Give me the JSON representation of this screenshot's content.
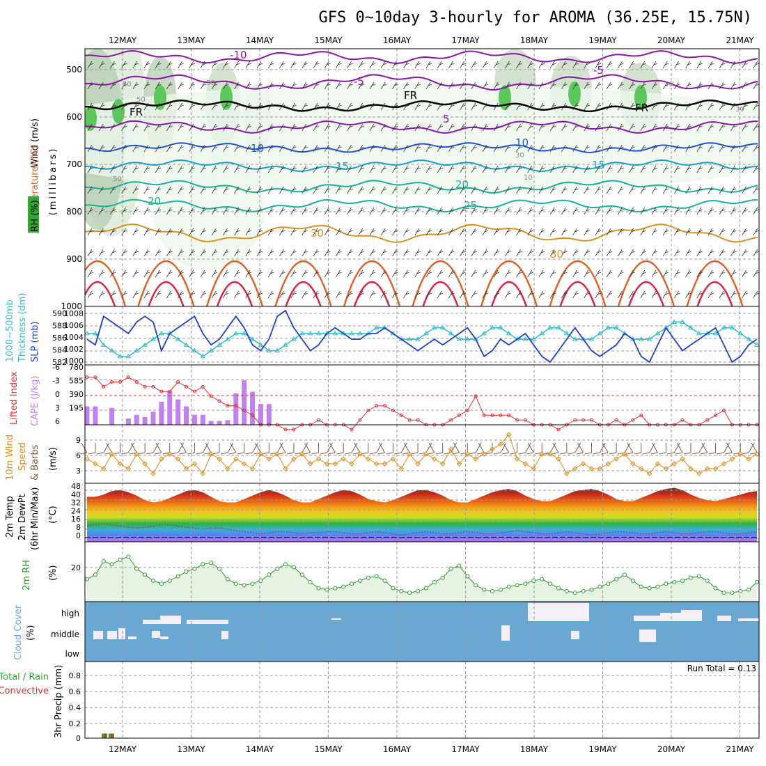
{
  "title": "GFS 0~10day 3-hourly for AROMA (36.25E, 15.75N)",
  "dates": [
    "12MAY",
    "13MAY",
    "14MAY",
    "15MAY",
    "16MAY",
    "17MAY",
    "18MAY",
    "19MAY",
    "20MAY",
    "21MAY"
  ],
  "colors": {
    "grid": "#9a9a9a",
    "cloud": "#6aa8d4",
    "cloud_gap": "#f4eef6",
    "slp": "#1f3fcf",
    "thickness": "#33bbcc",
    "lifted": "#e03030",
    "cape": "#c080f0",
    "wind": "#e08a10",
    "barb": "#7a5a40",
    "rh": "#2a9a2a",
    "rh_fill": "#e6f2e2",
    "dew": "#a04040",
    "temp_outline": "#5a3a2a",
    "iso_purple": "#8a14a8",
    "iso_blue": "#1f55d0",
    "iso_cyan": "#1aa0c8",
    "iso_teal": "#1ab09a",
    "iso_orange": "#d89020",
    "iso_dark_orange": "#e06020",
    "iso_red": "#e02040",
    "freezing": "#000000"
  },
  "panels": {
    "upper": {
      "ylabel_wind": "Wind (m/s)",
      "ylabel_temp": "Temperature (°C)",
      "ylabel_rh": "RH (%)",
      "ylabel_p": "(millibars)",
      "yticks": [
        "500",
        "600",
        "700",
        "800",
        "900",
        "1000"
      ],
      "contour_labels": [
        "-10",
        "-5",
        "-5",
        "FR",
        "FR",
        "FR",
        "5",
        "10",
        "10",
        "15",
        "15",
        "20",
        "20",
        "25",
        "30",
        "30"
      ],
      "rh_labels": [
        "50",
        "50",
        "50",
        "30",
        "30",
        "30",
        "50",
        "10"
      ]
    },
    "slp": {
      "ylabel1": "1000~500mb",
      "ylabel2": "Thickness (dm)",
      "ylabel3": "SLP (mb)",
      "yticks_left": [
        "590",
        "588",
        "586",
        "584",
        "582"
      ],
      "yticks_right": [
        "1008",
        "1006",
        "1004",
        "1002",
        "1000"
      ]
    },
    "cape": {
      "ylabel1": "Lifted Index",
      "ylabel2": "CAPE (J/kg)",
      "yticks_left": [
        "-6",
        "-3",
        "0",
        "3",
        "6"
      ],
      "yticks_right": [
        "780",
        "585",
        "390",
        "195"
      ]
    },
    "wind": {
      "ylabel1": "10m Wind",
      "ylabel2": "Speed",
      "ylabel3": "& Barbs",
      "ylabel4": "(m/s)",
      "yticks": [
        "9",
        "6",
        "3"
      ]
    },
    "temp": {
      "ylabel1": "2m Temp",
      "ylabel2": "2m DewPt",
      "ylabel3": "(6hr Min/Max)",
      "ylabel4": "(°C)",
      "yticks": [
        "48",
        "40",
        "32",
        "24",
        "16",
        "8",
        "0"
      ]
    },
    "rh": {
      "ylabel1": "2m RH",
      "ylabel2": "(%)",
      "yticks": [
        "20"
      ]
    },
    "cloud": {
      "ylabel1": "Cloud Cover",
      "ylabel2": "(%)",
      "levels": [
        "high",
        "middle",
        "low"
      ]
    },
    "precip": {
      "ylabel1": "Total / Rain",
      "ylabel2": "Convective",
      "ylabel3": "3hr Precip (mm)",
      "yticks": [
        "0.8",
        "0.6",
        "0.4",
        "0.2",
        "0"
      ],
      "run_total": "Run Total = 0.13"
    }
  },
  "chart_data": [
    {
      "type": "line",
      "name": "SLP (mb)",
      "x_unit": "3-hourly steps from 11MAY 12Z",
      "values": [
        1004,
        1003,
        1008,
        1007,
        1006,
        1005,
        1007,
        1008,
        1007,
        1002,
        1005,
        1006,
        1007,
        1008,
        1005,
        1003,
        1004,
        1006,
        1008,
        1006,
        1003,
        1002,
        1004,
        1008,
        1009,
        1006,
        1004,
        1002,
        1003,
        1005,
        1006,
        1005,
        1004,
        1004,
        1005,
        1005,
        1006,
        1005,
        1004,
        1003,
        1002,
        1003,
        1004,
        1003,
        1004,
        1005,
        1006,
        1004,
        1001,
        1002,
        1004,
        1003,
        1004,
        1005,
        1003,
        1001,
        1000,
        1002,
        1004,
        1006,
        1004,
        1002,
        1001,
        1002,
        1003,
        1005,
        1004,
        1001,
        1000,
        1003,
        1006,
        1004,
        1002,
        1003,
        1004,
        1005,
        1006,
        1003,
        1000,
        1001,
        1003,
        1004
      ],
      "ylim": [
        1000,
        1009
      ]
    },
    {
      "type": "line",
      "name": "1000~500mb Thickness (dm)",
      "marker": "triangle",
      "values": [
        587,
        587,
        585,
        584,
        583,
        583,
        584,
        585,
        586,
        587,
        587,
        586,
        585,
        584,
        583,
        584,
        585,
        586,
        587,
        587,
        586,
        585,
        584,
        584,
        585,
        586,
        587,
        587,
        587,
        587,
        587,
        587,
        587,
        587,
        587,
        588,
        588,
        587,
        586,
        586,
        586,
        587,
        588,
        588,
        587,
        586,
        586,
        586,
        587,
        588,
        588,
        587,
        586,
        586,
        586,
        587,
        588,
        588,
        587,
        586,
        586,
        586,
        587,
        588,
        588,
        587,
        586,
        586,
        586,
        587,
        588,
        589,
        589,
        588,
        587,
        587,
        587,
        588,
        588,
        587,
        586,
        585
      ],
      "ylim": [
        582,
        591
      ]
    },
    {
      "type": "line",
      "name": "Lifted Index",
      "marker": "circle",
      "values": [
        -4,
        -4,
        -2,
        -3,
        -3,
        -4,
        -3,
        -2,
        -2,
        -1,
        -1,
        -3,
        -2,
        -1,
        -2,
        0,
        1,
        2,
        2,
        3,
        4,
        6,
        6,
        6,
        7,
        7,
        6,
        6,
        5,
        6,
        6,
        6,
        7,
        5,
        3,
        2,
        2,
        3,
        4,
        5,
        5,
        6,
        6,
        6,
        5,
        4,
        3,
        0,
        4,
        4,
        4,
        4,
        5,
        5,
        6,
        6,
        6,
        7,
        6,
        5,
        5,
        5,
        6,
        6,
        5,
        6,
        5,
        4,
        6,
        6,
        6,
        6,
        5,
        6,
        6,
        5,
        4,
        3,
        6,
        6,
        6,
        6
      ],
      "ylim": [
        6,
        -6
      ]
    },
    {
      "type": "bar",
      "name": "CAPE (J/kg)",
      "values": [
        240,
        240,
        0,
        220,
        0,
        80,
        130,
        100,
        170,
        300,
        440,
        330,
        240,
        130,
        130,
        50,
        50,
        60,
        410,
        580,
        430,
        270,
        270,
        0
      ],
      "ylim": [
        0,
        780
      ]
    },
    {
      "type": "line",
      "name": "10m Wind Speed (m/s)",
      "marker": "diamond",
      "values": [
        5,
        4,
        3,
        6,
        4,
        3,
        6,
        4,
        2,
        5,
        6,
        5,
        3,
        4,
        2,
        6,
        5,
        3,
        5,
        4,
        3,
        6,
        5,
        6,
        3,
        5,
        6,
        4,
        5,
        4,
        4,
        5,
        4,
        6,
        5,
        4,
        4,
        5,
        3,
        6,
        4,
        6,
        5,
        4,
        7,
        4,
        6,
        5,
        6,
        7,
        8,
        10,
        5,
        4,
        3,
        6,
        6,
        5,
        2,
        3,
        4,
        3,
        3,
        4,
        5,
        6,
        4,
        3,
        2,
        4,
        3,
        4,
        5,
        3,
        2,
        3,
        3,
        4,
        5,
        6,
        5,
        6
      ],
      "ylim": [
        0,
        12
      ]
    },
    {
      "type": "area",
      "name": "2m Temp (°C)",
      "values": [
        36,
        36,
        38,
        41,
        42,
        40,
        37,
        33,
        31,
        32,
        35,
        38,
        41,
        42,
        40,
        36,
        32,
        31,
        31,
        34,
        37,
        40,
        42,
        40,
        37,
        33,
        31,
        31,
        34,
        37,
        40,
        42,
        41,
        38,
        34,
        32,
        31,
        33,
        36,
        39,
        42,
        42,
        40,
        37,
        33,
        31,
        31,
        34,
        37,
        40,
        42,
        43,
        41,
        37,
        34,
        32,
        32,
        35,
        38,
        41,
        42,
        43,
        41,
        38,
        34,
        32,
        32,
        35,
        38,
        41,
        43,
        44,
        42,
        38,
        35,
        33,
        32,
        34,
        36,
        38,
        40,
        41
      ],
      "ylim": [
        -4,
        48
      ]
    },
    {
      "type": "line",
      "name": "2m DewPt (°C)",
      "values": [
        10,
        11,
        12,
        11,
        10,
        9,
        8,
        9,
        10,
        11,
        11,
        10,
        9,
        8,
        7,
        8,
        8,
        7,
        6,
        5,
        4,
        3,
        4,
        5,
        5,
        4,
        3,
        4,
        4,
        5,
        5,
        4,
        3,
        3,
        4,
        5,
        4,
        3,
        2,
        3,
        4,
        5,
        4,
        3,
        3,
        4,
        5,
        4,
        3,
        3,
        4,
        5,
        6,
        5,
        4,
        3,
        3,
        4,
        5,
        4,
        3,
        2,
        3,
        4,
        5,
        5,
        4,
        3,
        3,
        4,
        5,
        4,
        3,
        3,
        4,
        5,
        5,
        4,
        3,
        3,
        4,
        5
      ],
      "ylim": [
        -4,
        48
      ]
    },
    {
      "type": "area",
      "name": "2m RH (%)",
      "values": [
        15,
        18,
        27,
        25,
        28,
        30,
        22,
        18,
        14,
        12,
        14,
        17,
        20,
        22,
        25,
        26,
        22,
        15,
        12,
        11,
        12,
        14,
        18,
        22,
        25,
        23,
        18,
        13,
        9,
        8,
        9,
        10,
        12,
        14,
        16,
        17,
        14,
        9,
        7,
        6,
        7,
        9,
        13,
        16,
        22,
        24,
        17,
        11,
        8,
        7,
        8,
        10,
        11,
        12,
        14,
        15,
        12,
        9,
        7,
        6,
        7,
        8,
        10,
        12,
        15,
        18,
        14,
        10,
        9,
        10,
        12,
        13,
        14,
        16,
        17,
        14,
        9,
        6,
        6,
        7,
        8,
        13
      ],
      "ylim": [
        0,
        40
      ]
    },
    {
      "type": "bar",
      "name": "3hr Precip (mm)",
      "values": [
        0.06,
        0.06
      ],
      "ylim": [
        0,
        1
      ]
    }
  ]
}
